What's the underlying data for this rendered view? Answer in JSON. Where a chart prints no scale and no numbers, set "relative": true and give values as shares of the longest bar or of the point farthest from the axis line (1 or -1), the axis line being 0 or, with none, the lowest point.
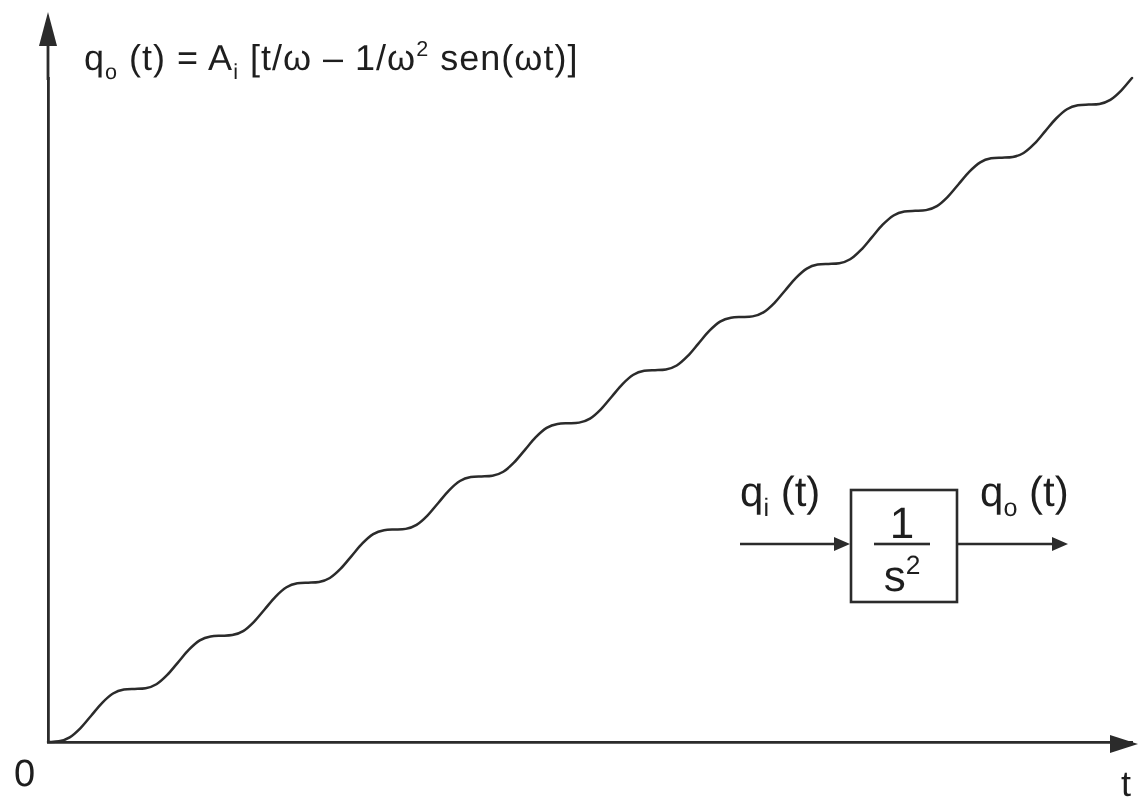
{
  "chart_data": {
    "type": "line",
    "relative": true,
    "ylabel": "q$_{o}$ (t) = A$_{i}$ [t/ω – 1/ω$^{2}$ sen(ωt)]",
    "xlabel": "t",
    "annotations": [
      "0",
      "q$_{i}$ (t)",
      "1",
      "s$^{2}$",
      "q$_{o}$ (t)"
    ],
    "categories": [
      null,
      null,
      null,
      null,
      null,
      null,
      null,
      null,
      null,
      null,
      null,
      null,
      null,
      null,
      null,
      null,
      null,
      null,
      null,
      null,
      null,
      null,
      null,
      null,
      null,
      null,
      null,
      null,
      null,
      null,
      null,
      null,
      null,
      null,
      null,
      null,
      null,
      null,
      null,
      null,
      null,
      null,
      null,
      null,
      null,
      null,
      null,
      null,
      null,
      null,
      null,
      null,
      null,
      null,
      null,
      null,
      null,
      null,
      null,
      null,
      null,
      null,
      null,
      null,
      null,
      null,
      null,
      null,
      null,
      null,
      null,
      null,
      null,
      null,
      null,
      null,
      null,
      null,
      null,
      null,
      null,
      null,
      null,
      null,
      null,
      null,
      null,
      null,
      null,
      null,
      null,
      null,
      null,
      null,
      null,
      null,
      null,
      null,
      null,
      null,
      null
    ],
    "series": [
      {
        "color": "#2b2b2b",
        "values": [
          0,
          0.001,
          0.007,
          0.021,
          0.04,
          0.059,
          0.073,
          0.079,
          0.08,
          0.081,
          0.087,
          0.101,
          0.12,
          0.139,
          0.153,
          0.159,
          0.16,
          0.161,
          0.167,
          0.181,
          0.2,
          0.219,
          0.233,
          0.239,
          0.24,
          0.241,
          0.247,
          0.261,
          0.28,
          0.299,
          0.313,
          0.319,
          0.32,
          0.321,
          0.327,
          0.341,
          0.36,
          0.379,
          0.393,
          0.399,
          0.4,
          0.401,
          0.407,
          0.421,
          0.44,
          0.459,
          0.473,
          0.479,
          0.48,
          0.481,
          0.487,
          0.501,
          0.52,
          0.539,
          0.553,
          0.559,
          0.56,
          0.561,
          0.567,
          0.581,
          0.6,
          0.619,
          0.633,
          0.639,
          0.64,
          0.641,
          0.647,
          0.661,
          0.68,
          0.699,
          0.713,
          0.719,
          0.72,
          0.721,
          0.727,
          0.741,
          0.76,
          0.779,
          0.793,
          0.799,
          0.8,
          0.801,
          0.807,
          0.821,
          0.84,
          0.859,
          0.873,
          0.879,
          0.88,
          0.881,
          0.887,
          0.901,
          0.92,
          0.939,
          0.953,
          0.959,
          0.96,
          0.961,
          0.967,
          0.981,
          1
        ]
      }
    ]
  }
}
